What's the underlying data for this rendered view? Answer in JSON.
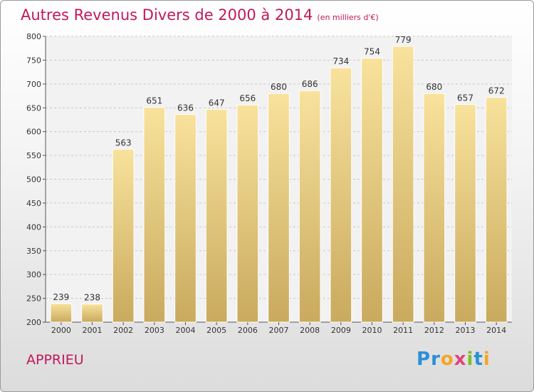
{
  "title": "Autres Revenus Divers de 2000 à 2014",
  "subtitle": "(en milliers d'€)",
  "location": "APPRIEU",
  "brand": {
    "name": "Proxiti",
    "letters": [
      {
        "char": "P",
        "color": "#2a8fd8"
      },
      {
        "char": "r",
        "color": "#2a8fd8"
      },
      {
        "char": "o",
        "color": "#f5a623"
      },
      {
        "char": "x",
        "color": "#e0457b"
      },
      {
        "char": "i",
        "color": "#7bbf2a"
      },
      {
        "char": "t",
        "color": "#2a8fd8"
      },
      {
        "char": "i",
        "color": "#f5a623"
      }
    ]
  },
  "colors": {
    "accent": "#c2185b",
    "bar_top": "#f8e29c",
    "bar_bottom": "#c9aa5e",
    "grid": "#c8c8c8"
  },
  "chart_data": {
    "type": "bar",
    "categories": [
      "2000",
      "2001",
      "2002",
      "2003",
      "2004",
      "2005",
      "2006",
      "2007",
      "2008",
      "2009",
      "2010",
      "2011",
      "2012",
      "2013",
      "2014"
    ],
    "values": [
      239,
      238,
      563,
      651,
      636,
      647,
      656,
      680,
      686,
      734,
      754,
      779,
      680,
      657,
      672
    ],
    "ylim": [
      200,
      800
    ],
    "yticks": [
      200,
      250,
      300,
      350,
      400,
      450,
      500,
      550,
      600,
      650,
      700,
      750,
      800
    ],
    "grid": true,
    "data_labels": true
  }
}
